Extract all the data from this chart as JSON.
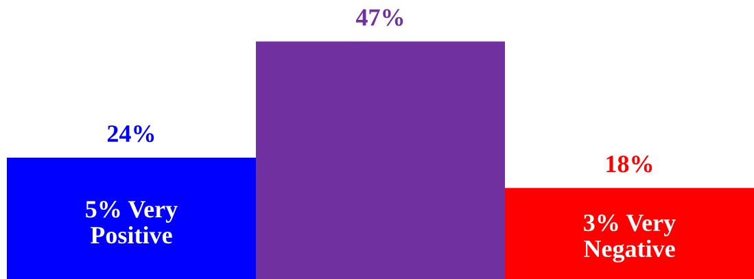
{
  "chart_data": {
    "type": "bar",
    "categories": [
      null,
      null,
      null
    ],
    "values": [
      24,
      47,
      18
    ],
    "colors": [
      "#0000ff",
      "#7030a0",
      "#ff0000"
    ],
    "value_labels": [
      "24%",
      "47%",
      "18%"
    ],
    "annotations": [
      "5% Very\nPositive",
      "3% Very\nNegative"
    ],
    "grid": false,
    "legend": false
  }
}
